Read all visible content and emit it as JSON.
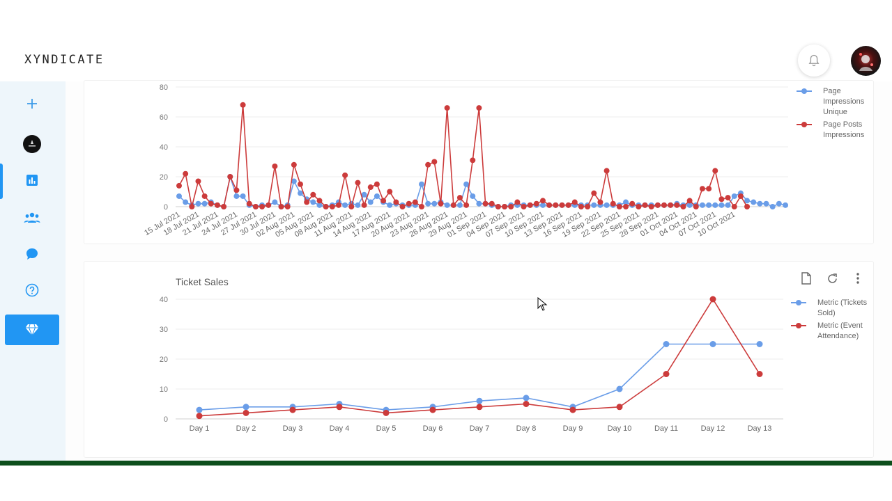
{
  "header": {
    "brand": "XYNDICATE",
    "bell_icon": "bell-icon",
    "avatar_icon": "avatar"
  },
  "sidebar": {
    "items": [
      {
        "name": "add",
        "icon": "plus-icon"
      },
      {
        "name": "account",
        "icon": "account-logo-icon"
      },
      {
        "name": "analytics",
        "icon": "bar-chart-icon"
      },
      {
        "name": "audience",
        "icon": "people-icon"
      },
      {
        "name": "messages",
        "icon": "chat-icon"
      },
      {
        "name": "help",
        "icon": "help-icon"
      },
      {
        "name": "premium",
        "icon": "diamond-icon"
      }
    ],
    "active": "analytics"
  },
  "colors": {
    "accent": "#2196f3",
    "series_blue": "#6a9de8",
    "series_red": "#cc3b3b"
  },
  "chart1": {
    "legend": [
      "Page Impressions Unique",
      "Page Posts Impressions"
    ],
    "chart_data": {
      "type": "line",
      "ylim": [
        0,
        80
      ],
      "yticks": [
        0,
        20,
        40,
        60,
        80
      ],
      "x_start": "15 Jul 2021",
      "x_tick_labels": [
        "15 Jul 2021",
        "18 Jul 2021",
        "21 Jul 2021",
        "24 Jul 2021",
        "27 Jul 2021",
        "30 Jul 2021",
        "02 Aug 2021",
        "05 Aug 2021",
        "08 Aug 2021",
        "11 Aug 2021",
        "14 Aug 2021",
        "17 Aug 2021",
        "20 Aug 2021",
        "23 Aug 2021",
        "26 Aug 2021",
        "29 Aug 2021",
        "01 Sep 2021",
        "04 Sep 2021",
        "07 Sep 2021",
        "10 Sep 2021",
        "13 Sep 2021",
        "16 Sep 2021",
        "19 Sep 2021",
        "22 Sep 2021",
        "25 Sep 2021",
        "28 Sep 2021",
        "01 Oct 2021",
        "04 Oct 2021",
        "07 Oct 2021",
        "10 Oct 2021"
      ],
      "series": [
        {
          "name": "Page Impressions Unique",
          "color": "#6a9de8",
          "values": [
            7,
            3,
            1,
            2,
            2,
            3,
            1,
            0,
            20,
            7,
            7,
            1,
            0,
            1,
            1,
            3,
            0,
            1,
            17,
            9,
            5,
            3,
            1,
            0,
            1,
            3,
            1,
            2,
            1,
            8,
            3,
            7,
            3,
            1,
            2,
            1,
            1,
            1,
            15,
            2,
            2,
            3,
            1,
            1,
            1,
            15,
            7,
            2,
            2,
            1,
            0,
            0,
            1,
            1,
            1,
            1,
            1,
            1,
            1,
            1,
            1,
            1,
            1,
            1,
            1,
            1,
            1,
            1,
            1,
            1,
            3,
            1,
            1,
            1,
            1,
            1,
            1,
            1,
            2,
            1,
            1,
            1,
            1,
            1,
            1,
            1,
            1,
            7,
            9,
            4,
            3,
            2,
            2,
            0,
            2,
            1
          ]
        },
        {
          "name": "Page Posts Impressions",
          "color": "#cc3b3b",
          "values": [
            14,
            22,
            0,
            17,
            7,
            2,
            1,
            0,
            20,
            11,
            68,
            2,
            0,
            0,
            1,
            27,
            0,
            0,
            28,
            15,
            3,
            8,
            4,
            0,
            0,
            1,
            21,
            0,
            16,
            1,
            13,
            15,
            4,
            10,
            3,
            0,
            2,
            3,
            0,
            28,
            30,
            2,
            66,
            1,
            6,
            1,
            31,
            66,
            2,
            2,
            0,
            0,
            0,
            3,
            0,
            1,
            2,
            4,
            1,
            1,
            1,
            1,
            3,
            0,
            0,
            9,
            3,
            24,
            2,
            0,
            0,
            2,
            0,
            1,
            0,
            1,
            1,
            1,
            1,
            0,
            4,
            0,
            12,
            12,
            24,
            5,
            6,
            0,
            7,
            0
          ]
        }
      ]
    }
  },
  "chart2": {
    "title": "Ticket Sales",
    "tools": [
      "export-icon",
      "refresh-icon",
      "more-vert-icon"
    ],
    "legend": [
      "Metric (Tickets Sold)",
      "Metric (Event Attendance)"
    ],
    "chart_data": {
      "type": "line",
      "title": "Ticket Sales",
      "categories": [
        "Day 1",
        "Day 2",
        "Day 3",
        "Day 4",
        "Day 5",
        "Day 6",
        "Day 7",
        "Day 8",
        "Day 9",
        "Day 10",
        "Day 11",
        "Day 12",
        "Day 13"
      ],
      "ylim": [
        0,
        40
      ],
      "yticks": [
        0,
        10,
        20,
        30,
        40
      ],
      "series": [
        {
          "name": "Metric (Tickets Sold)",
          "color": "#6a9de8",
          "values": [
            3,
            4,
            4,
            5,
            3,
            4,
            6,
            7,
            4,
            10,
            25,
            25,
            25
          ]
        },
        {
          "name": "Metric (Event Attendance)",
          "color": "#cc3b3b",
          "values": [
            1,
            2,
            3,
            4,
            2,
            3,
            4,
            5,
            3,
            4,
            15,
            40,
            15
          ]
        }
      ],
      "legend_position": "right"
    }
  }
}
